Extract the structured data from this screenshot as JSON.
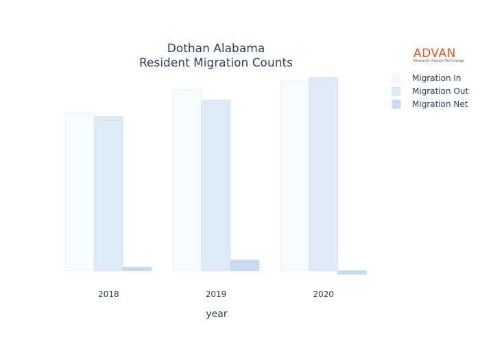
{
  "chart_data": {
    "type": "bar",
    "title_lines": [
      "Dothan Alabama",
      "Resident Migration Counts"
    ],
    "xlabel": "year",
    "ylabel": "",
    "categories": [
      "2018",
      "2019",
      "2020"
    ],
    "series": [
      {
        "name": "Migration In",
        "values": [
          4450,
          5100,
          5350
        ],
        "color": "#f7fbff",
        "stroke": "#e8f0fb"
      },
      {
        "name": "Migration Out",
        "values": [
          4350,
          4800,
          5450
        ],
        "color": "#deebf7",
        "stroke": "#d4e4f4"
      },
      {
        "name": "Migration Net",
        "values": [
          100,
          300,
          -100
        ],
        "color": "#c6dbef",
        "stroke": "#c6dbef"
      }
    ],
    "ylim": [
      -200,
      5500
    ],
    "grid": false,
    "legend_position": "right"
  },
  "logo": {
    "name": "ADVAN",
    "tagline": "Research through Technology",
    "color": "#e8501c"
  }
}
